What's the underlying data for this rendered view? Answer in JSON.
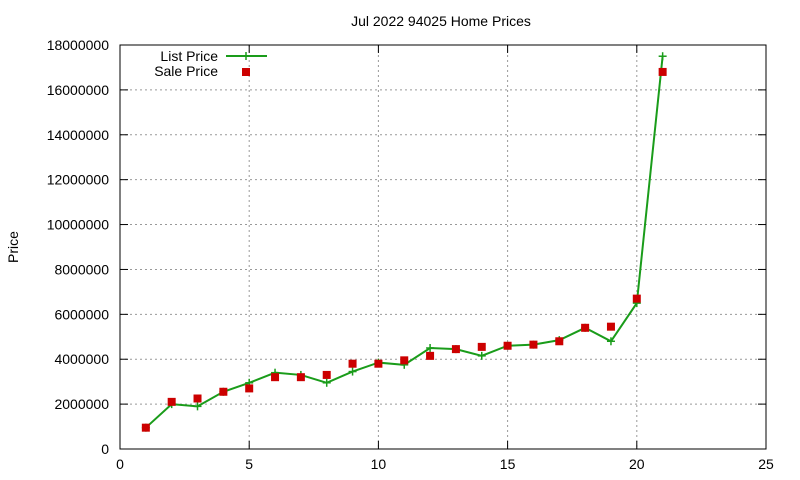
{
  "chart_data": {
    "type": "line",
    "title": "Jul 2022 94025 Home Prices",
    "xlabel": "",
    "ylabel": "Price",
    "xlim": [
      0,
      25
    ],
    "ylim": [
      0,
      18000000
    ],
    "x_ticks": [
      0,
      5,
      10,
      15,
      20,
      25
    ],
    "y_ticks": [
      0,
      2000000,
      4000000,
      6000000,
      8000000,
      10000000,
      12000000,
      14000000,
      16000000,
      18000000
    ],
    "grid": true,
    "legend_position": "top-left",
    "series": [
      {
        "name": "List Price",
        "style": "line-with-plus-markers",
        "color": "#1a9c1a",
        "x": [
          1,
          2,
          3,
          4,
          5,
          6,
          7,
          8,
          9,
          10,
          11,
          12,
          13,
          14,
          15,
          16,
          17,
          18,
          19,
          20,
          21
        ],
        "y": [
          950000,
          2000000,
          1900000,
          2550000,
          2950000,
          3400000,
          3300000,
          2950000,
          3450000,
          3850000,
          3750000,
          4500000,
          4450000,
          4150000,
          4600000,
          4650000,
          4850000,
          5400000,
          4800000,
          6500000,
          17500000
        ]
      },
      {
        "name": "Sale Price",
        "style": "square-markers",
        "color": "#cc0000",
        "x": [
          1,
          2,
          3,
          4,
          5,
          6,
          7,
          8,
          9,
          10,
          11,
          12,
          13,
          14,
          15,
          16,
          17,
          18,
          19,
          20,
          21
        ],
        "y": [
          950000,
          2100000,
          2250000,
          2550000,
          2700000,
          3200000,
          3200000,
          3300000,
          3800000,
          3800000,
          3950000,
          4150000,
          4450000,
          4550000,
          4600000,
          4650000,
          4800000,
          5400000,
          5450000,
          6700000,
          16800000
        ]
      }
    ]
  }
}
